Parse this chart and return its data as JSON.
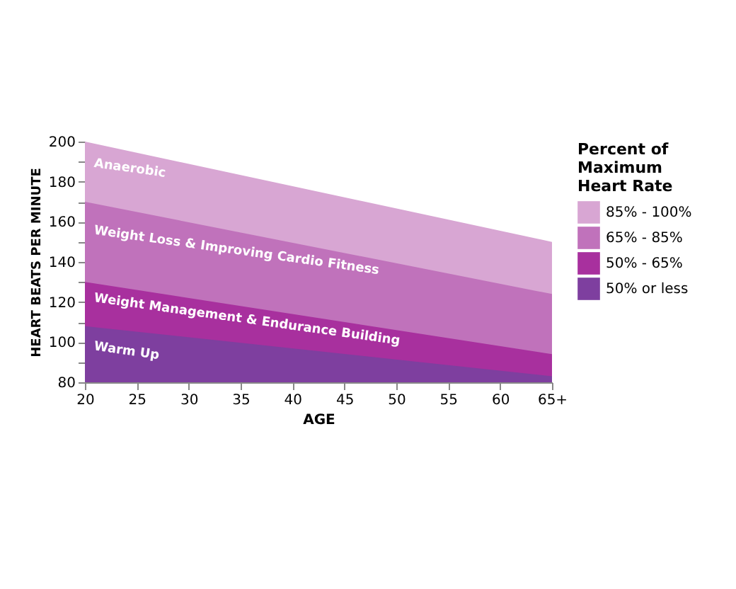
{
  "chart_data": {
    "type": "area",
    "xlabel": "AGE",
    "ylabel": "HEART BEATS PER MINUTE",
    "legend_title": "Percent of Maximum Heart Rate",
    "legend": "right",
    "grid": false,
    "x": [
      20,
      65
    ],
    "series": [
      {
        "name": "50% or less",
        "color": "#7e3f9f",
        "values": [
          108,
          83
        ]
      },
      {
        "name": "50% - 65%",
        "color": "#a8309e",
        "values": [
          130,
          94
        ]
      },
      {
        "name": "65% - 85%",
        "color": "#c072bb",
        "values": [
          170,
          124
        ]
      },
      {
        "name": "85% - 100%",
        "color": "#d8a6d3",
        "values": [
          200,
          150
        ]
      }
    ],
    "xlim": [
      20,
      65
    ],
    "xticks": [
      20,
      25,
      30,
      35,
      40,
      45,
      50,
      55,
      60,
      {
        "value": 65,
        "label": "65+"
      }
    ],
    "ylim": [
      80,
      200
    ],
    "yticks": [
      80,
      {
        "value": 90,
        "label": null
      },
      100,
      {
        "value": 110,
        "label": null
      },
      120,
      {
        "value": 130,
        "label": null
      },
      140,
      {
        "value": 150,
        "label": null
      },
      160,
      {
        "value": 170,
        "label": null
      },
      180,
      {
        "value": 190,
        "label": null
      },
      200
    ],
    "annotations": [
      "Anaerobic",
      "Weight Loss & Improving Cardio Fitness",
      "Weight Management & Endurance Building",
      "Warm Up"
    ]
  }
}
